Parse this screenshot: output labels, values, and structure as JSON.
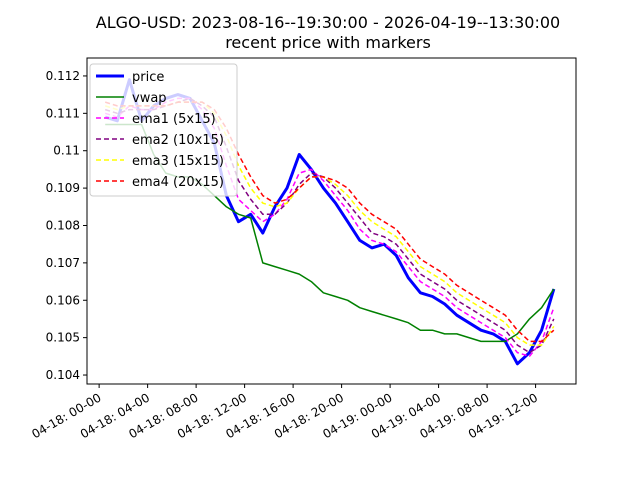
{
  "chart_data": {
    "type": "line",
    "title": "ALGO-USD: 2023-08-16--19:30:00 - 2026-04-19--13:30:00",
    "subtitle": "recent price with markers",
    "x": [
      "04-18 00:30",
      "04-18 01:30",
      "04-18 02:30",
      "04-18 03:30",
      "04-18 04:30",
      "04-18 05:30",
      "04-18 06:30",
      "04-18 07:30",
      "04-18 08:30",
      "04-18 09:30",
      "04-18 10:30",
      "04-18 11:30",
      "04-18 12:30",
      "04-18 13:30",
      "04-18 14:30",
      "04-18 15:30",
      "04-18 16:30",
      "04-18 17:30",
      "04-18 18:30",
      "04-18 19:30",
      "04-18 20:30",
      "04-18 21:30",
      "04-18 22:30",
      "04-18 23:30",
      "04-19 00:30",
      "04-19 01:30",
      "04-19 02:30",
      "04-19 03:30",
      "04-19 04:30",
      "04-19 05:30",
      "04-19 06:30",
      "04-19 07:30",
      "04-19 08:30",
      "04-19 09:30",
      "04-19 10:30",
      "04-19 11:30",
      "04-19 12:30",
      "04-19 13:30"
    ],
    "series": [
      {
        "name": "price",
        "color": "#0000ff",
        "linestyle": "solid",
        "linewidth": 3,
        "values": [
          0.1109,
          0.1108,
          0.1119,
          0.1108,
          0.1112,
          0.1114,
          0.1115,
          0.1114,
          0.1108,
          0.1102,
          0.1088,
          0.1081,
          0.1083,
          0.1078,
          0.1085,
          0.109,
          0.1099,
          0.1095,
          0.109,
          0.1086,
          0.1081,
          0.1076,
          0.1074,
          0.1075,
          0.1072,
          0.1066,
          0.1062,
          0.1061,
          0.1059,
          0.1056,
          0.1054,
          0.1052,
          0.1051,
          0.1049,
          0.1043,
          0.1046,
          0.1052,
          0.1063
        ]
      },
      {
        "name": "vwap",
        "color": "#008000",
        "linestyle": "solid",
        "linewidth": 1.5,
        "values": [
          0.1107,
          0.1107,
          0.1107,
          0.1107,
          0.1099,
          0.1094,
          0.1093,
          0.1093,
          0.1091,
          0.1088,
          0.1085,
          0.1083,
          0.1082,
          0.107,
          0.1069,
          0.1068,
          0.1067,
          0.1065,
          0.1062,
          0.1061,
          0.106,
          0.1058,
          0.1057,
          0.1056,
          0.1055,
          0.1054,
          0.1052,
          0.1052,
          0.1051,
          0.1051,
          0.105,
          0.1049,
          0.1049,
          0.1049,
          0.1051,
          0.1055,
          0.1058,
          0.1063
        ]
      },
      {
        "name": "ema1 (5x15)",
        "color": "#ff00ff",
        "linestyle": "dashed",
        "linewidth": 1.5,
        "values": [
          0.111,
          0.1109,
          0.1112,
          0.1111,
          0.1111,
          0.1113,
          0.1114,
          0.1114,
          0.1111,
          0.1106,
          0.1096,
          0.1087,
          0.1084,
          0.1081,
          0.1083,
          0.1087,
          0.1094,
          0.1095,
          0.1092,
          0.1088,
          0.1084,
          0.1079,
          0.1076,
          0.1075,
          0.1073,
          0.1069,
          0.1065,
          0.1063,
          0.1061,
          0.1058,
          0.1056,
          0.1054,
          0.1052,
          0.105,
          0.1046,
          0.1045,
          0.1049,
          0.1058
        ]
      },
      {
        "name": "ema2 (10x15)",
        "color": "#800080",
        "linestyle": "dashed",
        "linewidth": 1.5,
        "values": [
          0.1111,
          0.111,
          0.1111,
          0.1111,
          0.1111,
          0.1112,
          0.1113,
          0.1114,
          0.1112,
          0.1109,
          0.1101,
          0.1092,
          0.1087,
          0.1083,
          0.1083,
          0.1086,
          0.1091,
          0.1094,
          0.1093,
          0.109,
          0.1086,
          0.1082,
          0.1078,
          0.1077,
          0.1075,
          0.1071,
          0.1067,
          0.1065,
          0.1063,
          0.106,
          0.1058,
          0.1056,
          0.1054,
          0.1052,
          0.1048,
          0.1046,
          0.1048,
          0.1055
        ]
      },
      {
        "name": "ema3 (15x15)",
        "color": "#ffff00",
        "linestyle": "dashed",
        "linewidth": 1.5,
        "values": [
          0.1112,
          0.1111,
          0.1112,
          0.1112,
          0.1112,
          0.1112,
          0.1113,
          0.1113,
          0.1113,
          0.111,
          0.1104,
          0.1096,
          0.109,
          0.1086,
          0.1085,
          0.1086,
          0.109,
          0.1093,
          0.1093,
          0.1091,
          0.1088,
          0.1084,
          0.1081,
          0.1079,
          0.1077,
          0.1073,
          0.1069,
          0.1067,
          0.1065,
          0.1062,
          0.106,
          0.1058,
          0.1056,
          0.1054,
          0.105,
          0.1048,
          0.1048,
          0.1053
        ]
      },
      {
        "name": "ema4 (20x15)",
        "color": "#ff0000",
        "linestyle": "dashed",
        "linewidth": 1.5,
        "values": [
          0.1113,
          0.1112,
          0.1112,
          0.1112,
          0.1112,
          0.1112,
          0.1113,
          0.1113,
          0.1113,
          0.1111,
          0.1106,
          0.1099,
          0.1093,
          0.1088,
          0.1086,
          0.1087,
          0.109,
          0.1093,
          0.1093,
          0.1092,
          0.109,
          0.1086,
          0.1083,
          0.1081,
          0.1079,
          0.1075,
          0.1071,
          0.1069,
          0.1067,
          0.1064,
          0.1062,
          0.106,
          0.1058,
          0.1056,
          0.1052,
          0.1049,
          0.1049,
          0.1052
        ]
      }
    ],
    "xlim": [
      "04-17 23:00",
      "04-19 15:20"
    ],
    "xticks": [
      {
        "value": "04-18 00:00",
        "label": "04-18: 00-00"
      },
      {
        "value": "04-18 04:00",
        "label": "04-18: 04-00"
      },
      {
        "value": "04-18 08:00",
        "label": "04-18: 08-00"
      },
      {
        "value": "04-18 12:00",
        "label": "04-18: 12-00"
      },
      {
        "value": "04-18 16:00",
        "label": "04-18: 16-00"
      },
      {
        "value": "04-18 20:00",
        "label": "04-18: 20-00"
      },
      {
        "value": "04-19 00:00",
        "label": "04-19: 00-00"
      },
      {
        "value": "04-19 04:00",
        "label": "04-19: 04-00"
      },
      {
        "value": "04-19 08:00",
        "label": "04-19: 08-00"
      },
      {
        "value": "04-19 12:00",
        "label": "04-19: 12-00"
      }
    ],
    "ylim": [
      0.10376,
      0.11248
    ],
    "yticks": [
      0.104,
      0.105,
      0.106,
      0.107,
      0.108,
      0.109,
      0.11,
      0.111,
      0.112
    ],
    "grid": false,
    "legend": "upper left"
  }
}
